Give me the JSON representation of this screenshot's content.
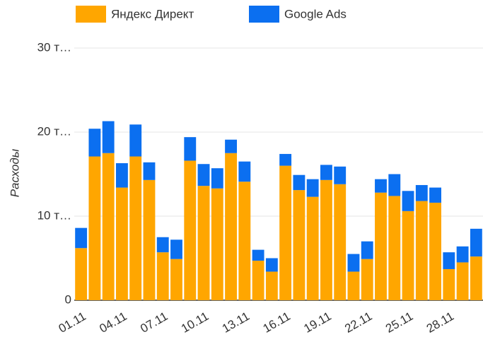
{
  "chart_data": {
    "type": "stacked_bar",
    "y_label": "Расходы",
    "categories": [
      "01.11",
      null,
      null,
      "04.11",
      null,
      null,
      "07.11",
      null,
      null,
      "10.11",
      null,
      null,
      "13.11",
      null,
      null,
      "16.11",
      null,
      null,
      "19.11",
      null,
      null,
      "22.11",
      null,
      null,
      "25.11",
      null,
      null,
      "28.11",
      null,
      null
    ],
    "series": [
      {
        "name": "Яндекс Директ",
        "color": "#ffa600",
        "values": [
          6200,
          17100,
          17500,
          13400,
          17100,
          14300,
          5700,
          4900,
          16600,
          13600,
          13300,
          17500,
          14100,
          4700,
          3400,
          16000,
          13100,
          12300,
          14300,
          13800,
          3400,
          4900,
          12800,
          12400,
          10600,
          11800,
          11600,
          3700,
          4500,
          5200
        ]
      },
      {
        "name": "Google Ads",
        "color": "#0b6ff0",
        "values": [
          2400,
          3300,
          3800,
          2900,
          3800,
          2100,
          1800,
          2300,
          2800,
          2600,
          2400,
          1600,
          2400,
          1300,
          1600,
          1400,
          1800,
          2100,
          1800,
          2100,
          2100,
          2100,
          1600,
          2600,
          2400,
          1900,
          1800,
          2000,
          1900,
          3300
        ]
      }
    ],
    "ylim": [
      0,
      30000
    ],
    "yticks": [
      0,
      {
        "value": 10000,
        "label": "10 т…"
      },
      {
        "value": 20000,
        "label": "20 т…"
      },
      {
        "value": 30000,
        "label": "30 т…"
      }
    ],
    "grid": true
  }
}
